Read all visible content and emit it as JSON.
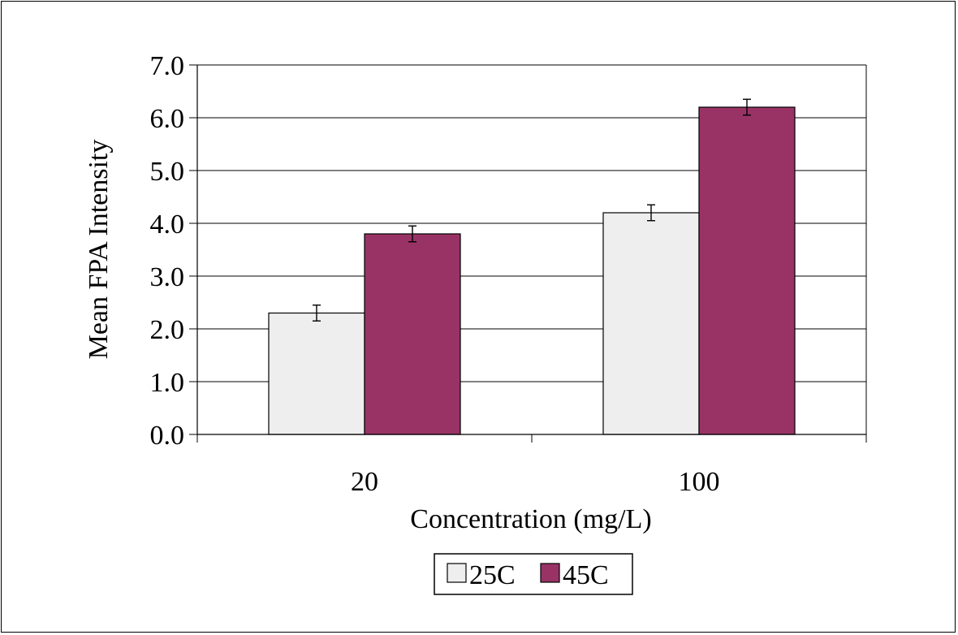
{
  "chart_data": {
    "type": "bar",
    "title": "",
    "xlabel": "Concentration (mg/L)",
    "ylabel": "Mean FPA Intensity",
    "categories": [
      "20",
      "100"
    ],
    "ylim": [
      0,
      7
    ],
    "yticks": [
      "0.0",
      "1.0",
      "2.0",
      "3.0",
      "4.0",
      "5.0",
      "6.0",
      "7.0"
    ],
    "grid": true,
    "legend_position": "bottom",
    "series": [
      {
        "name": "25C",
        "values": [
          2.3,
          4.2
        ],
        "error": [
          0.15,
          0.15
        ],
        "color": "#eeeeee"
      },
      {
        "name": "45C",
        "values": [
          3.8,
          6.2
        ],
        "error": [
          0.15,
          0.15
        ],
        "color": "#993366"
      }
    ]
  }
}
